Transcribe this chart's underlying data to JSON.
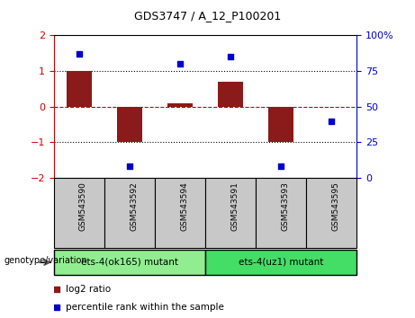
{
  "title": "GDS3747 / A_12_P100201",
  "samples": [
    "GSM543590",
    "GSM543592",
    "GSM543594",
    "GSM543591",
    "GSM543593",
    "GSM543595"
  ],
  "log2_ratio": [
    1.0,
    -1.0,
    0.1,
    0.7,
    -1.0,
    0.0
  ],
  "percentile_rank": [
    87,
    8,
    80,
    85,
    8,
    40
  ],
  "groups": [
    {
      "label": "ets-4(ok165) mutant",
      "indices": [
        0,
        1,
        2
      ],
      "color": "#90EE90"
    },
    {
      "label": "ets-4(uz1) mutant",
      "indices": [
        3,
        4,
        5
      ],
      "color": "#44DD66"
    }
  ],
  "bar_color": "#8B1A1A",
  "dot_color": "#0000CC",
  "ylim": [
    -2,
    2
  ],
  "right_ylim": [
    0,
    100
  ],
  "right_yticks": [
    0,
    25,
    50,
    75,
    100
  ],
  "right_yticklabels": [
    "0",
    "25",
    "50",
    "75",
    "100%"
  ],
  "left_yticks": [
    -2,
    -1,
    0,
    1,
    2
  ],
  "hline_color": "#CC0000",
  "dotted_line_color": "#000000",
  "bar_width": 0.5,
  "legend_items": [
    {
      "label": "log2 ratio",
      "color": "#8B1A1A"
    },
    {
      "label": "percentile rank within the sample",
      "color": "#0000CC"
    }
  ],
  "sample_box_color": "#C8C8C8",
  "genotype_label": "genotype/variation"
}
